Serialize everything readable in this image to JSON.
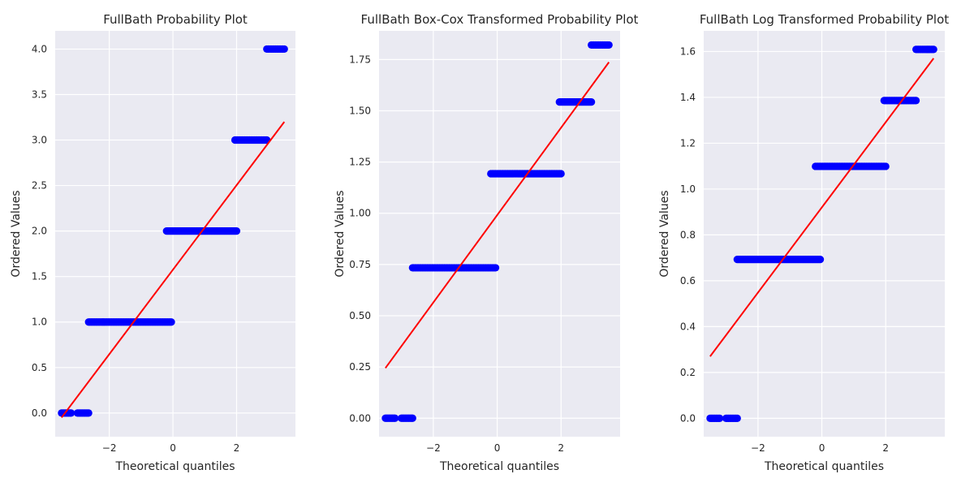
{
  "chart_data": [
    {
      "type": "scatter",
      "title": "FullBath Probability Plot",
      "xlabel": "Theoretical quantiles",
      "ylabel": "Ordered Values",
      "xlim": [
        -3.7,
        3.85
      ],
      "ylim": [
        -0.26,
        4.2
      ],
      "xticks": [
        -2,
        0,
        2
      ],
      "xtick_labels": [
        "−2",
        "0",
        "2"
      ],
      "yticks": [
        0.0,
        0.5,
        1.0,
        1.5,
        2.0,
        2.5,
        3.0,
        3.5,
        4.0
      ],
      "ytick_labels": [
        "0.0",
        "0.5",
        "1.0",
        "1.5",
        "2.0",
        "2.5",
        "3.0",
        "3.5",
        "4.0"
      ],
      "grid": true,
      "point_color": "#0000ff",
      "line_color": "#ff0000",
      "series": [
        {
          "type": "scatter",
          "values": [
            {
              "x": [
                -3.5,
                -3.2
              ],
              "y": 0.0
            },
            {
              "x": [
                -3.0,
                -2.65
              ],
              "y": 0.0
            },
            {
              "x": [
                -2.65,
                -0.05
              ],
              "y": 1.0
            },
            {
              "x": [
                -0.2,
                2.0
              ],
              "y": 2.0
            },
            {
              "x": [
                1.95,
                2.95
              ],
              "y": 3.0
            },
            {
              "x": [
                2.95,
                3.5
              ],
              "y": 4.0
            }
          ]
        },
        {
          "type": "line",
          "x": [
            -3.5,
            3.5
          ],
          "y": [
            -0.05,
            3.2
          ]
        }
      ]
    },
    {
      "type": "scatter",
      "title": "FullBath Box-Cox Transformed Probability Plot",
      "xlabel": "Theoretical quantiles",
      "ylabel": "Ordered Values",
      "xlim": [
        -3.7,
        3.85
      ],
      "ylim": [
        -0.09,
        1.89
      ],
      "xticks": [
        -2,
        0,
        2
      ],
      "xtick_labels": [
        "−2",
        "0",
        "2"
      ],
      "yticks": [
        0.0,
        0.25,
        0.5,
        0.75,
        1.0,
        1.25,
        1.5,
        1.75
      ],
      "ytick_labels": [
        "0.00",
        "0.25",
        "0.50",
        "0.75",
        "1.00",
        "1.25",
        "1.50",
        "1.75"
      ],
      "grid": true,
      "point_color": "#0000ff",
      "line_color": "#ff0000",
      "series": [
        {
          "type": "scatter",
          "values": [
            {
              "x": [
                -3.5,
                -3.2
              ],
              "y": 0.0
            },
            {
              "x": [
                -3.0,
                -2.65
              ],
              "y": 0.0
            },
            {
              "x": [
                -2.65,
                -0.05
              ],
              "y": 0.734
            },
            {
              "x": [
                -0.2,
                2.0
              ],
              "y": 1.193
            },
            {
              "x": [
                1.95,
                2.95
              ],
              "y": 1.543
            },
            {
              "x": [
                2.95,
                3.5
              ],
              "y": 1.821
            }
          ]
        },
        {
          "type": "line",
          "x": [
            -3.5,
            3.5
          ],
          "y": [
            0.245,
            1.737
          ]
        }
      ]
    },
    {
      "type": "scatter",
      "title": "FullBath Log Transformed Probability Plot",
      "xlabel": "Theoretical quantiles",
      "ylabel": "Ordered Values",
      "xlim": [
        -3.7,
        3.85
      ],
      "ylim": [
        -0.08,
        1.69
      ],
      "xticks": [
        -2,
        0,
        2
      ],
      "xtick_labels": [
        "−2",
        "0",
        "2"
      ],
      "yticks": [
        0.0,
        0.2,
        0.4,
        0.6,
        0.8,
        1.0,
        1.2,
        1.4,
        1.6
      ],
      "ytick_labels": [
        "0.0",
        "0.2",
        "0.4",
        "0.6",
        "0.8",
        "1.0",
        "1.2",
        "1.4",
        "1.6"
      ],
      "grid": true,
      "point_color": "#0000ff",
      "line_color": "#ff0000",
      "series": [
        {
          "type": "scatter",
          "values": [
            {
              "x": [
                -3.5,
                -3.2
              ],
              "y": 0.0
            },
            {
              "x": [
                -3.0,
                -2.65
              ],
              "y": 0.0
            },
            {
              "x": [
                -2.65,
                -0.05
              ],
              "y": 0.693
            },
            {
              "x": [
                -0.2,
                2.0
              ],
              "y": 1.099
            },
            {
              "x": [
                1.95,
                2.95
              ],
              "y": 1.386
            },
            {
              "x": [
                2.95,
                3.5
              ],
              "y": 1.609
            }
          ]
        },
        {
          "type": "line",
          "x": [
            -3.5,
            3.5
          ],
          "y": [
            0.27,
            1.57
          ]
        }
      ]
    }
  ]
}
